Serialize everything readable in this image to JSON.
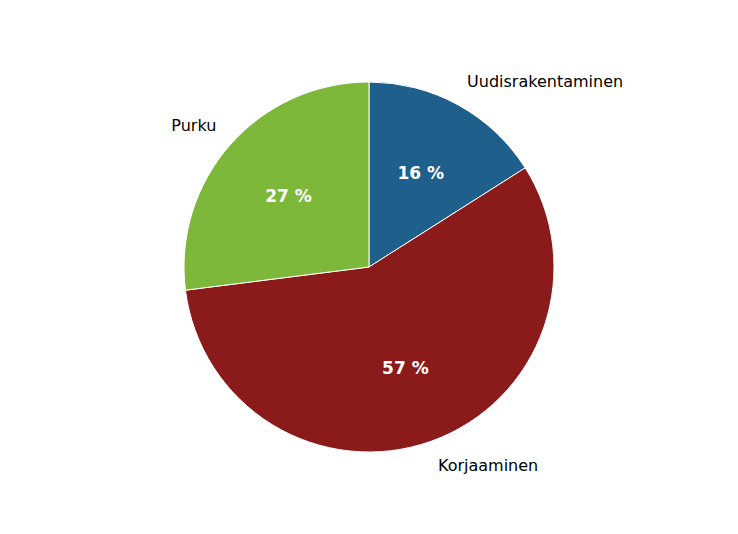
{
  "chart_data": {
    "type": "pie",
    "categories": [
      "Uudisrakentaminen",
      "Korjaaminen",
      "Purku"
    ],
    "values": [
      16,
      57,
      27
    ],
    "value_labels": [
      "16 %",
      "57 %",
      "27 %"
    ],
    "colors": [
      "#1F5F8B",
      "#8B1A1A",
      "#7DB83A"
    ],
    "data_labels": true
  }
}
